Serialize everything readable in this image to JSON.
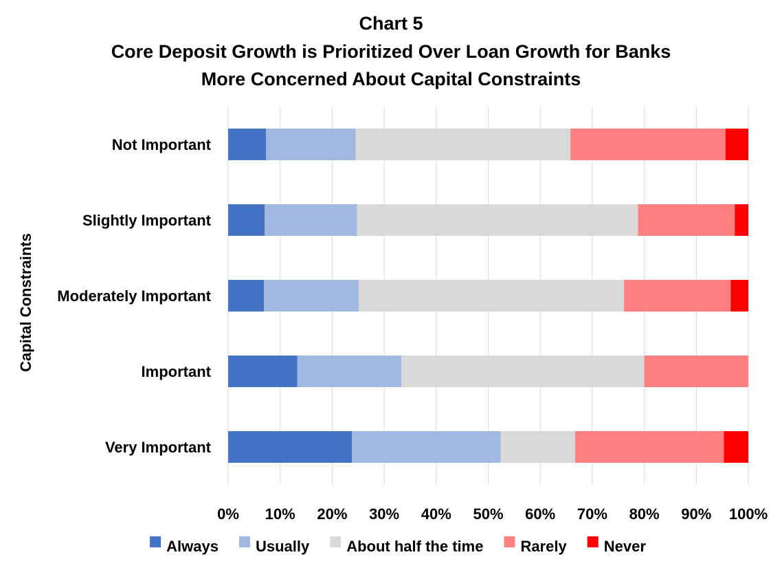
{
  "chart_data": {
    "type": "bar",
    "orientation": "horizontal",
    "stacked": "percent",
    "title_lines": [
      "Chart 5",
      "Core Deposit Growth is Prioritized Over Loan Growth for Banks",
      "More Concerned About Capital Constraints"
    ],
    "ylabel": "Capital Constraints",
    "xlabel": "",
    "categories": [
      "Not Important",
      "Slightly Important",
      "Moderately Important",
      "Important",
      "Very Important"
    ],
    "x_ticks": [
      "0%",
      "10%",
      "20%",
      "30%",
      "40%",
      "50%",
      "60%",
      "70%",
      "80%",
      "90%",
      "100%"
    ],
    "xlim": [
      0,
      100
    ],
    "grid": "vertical",
    "legend_position": "bottom",
    "series": [
      {
        "name": "Always",
        "color": "#4472C4",
        "values": [
          7.3,
          7.0,
          6.9,
          13.3,
          23.8
        ]
      },
      {
        "name": "Usually",
        "color": "#A1B8E1",
        "values": [
          17.2,
          17.8,
          18.2,
          20.0,
          28.6
        ]
      },
      {
        "name": "About half the time",
        "color": "#D9D9D9",
        "values": [
          41.3,
          54.0,
          51.0,
          46.7,
          14.3
        ]
      },
      {
        "name": "Rarely",
        "color": "#FF8080",
        "values": [
          29.8,
          18.6,
          20.5,
          20.0,
          28.6
        ]
      },
      {
        "name": "Never",
        "color": "#FF0000",
        "values": [
          4.4,
          2.6,
          3.4,
          0.0,
          4.7
        ]
      }
    ]
  }
}
